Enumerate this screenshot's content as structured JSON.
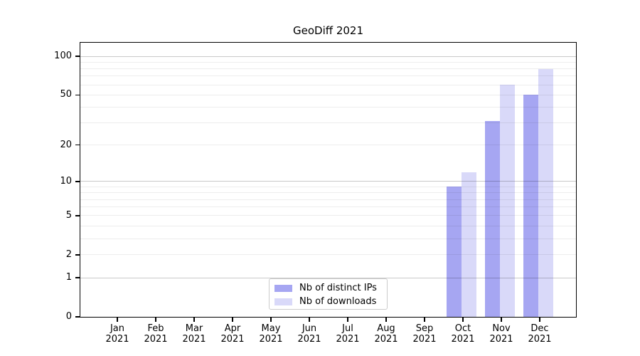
{
  "title": "GeoDiff 2021",
  "chart_data": {
    "type": "bar",
    "title": "GeoDiff 2021",
    "xlabel": "",
    "ylabel": "",
    "yscale": "symlog-log1p",
    "ylim": [
      0,
      127.4
    ],
    "grid": "horizontal",
    "legend_position": "bottom-center-inside",
    "categories": [
      {
        "month": "Jan",
        "year": "2021"
      },
      {
        "month": "Feb",
        "year": "2021"
      },
      {
        "month": "Mar",
        "year": "2021"
      },
      {
        "month": "Apr",
        "year": "2021"
      },
      {
        "month": "May",
        "year": "2021"
      },
      {
        "month": "Jun",
        "year": "2021"
      },
      {
        "month": "Jul",
        "year": "2021"
      },
      {
        "month": "Aug",
        "year": "2021"
      },
      {
        "month": "Sep",
        "year": "2021"
      },
      {
        "month": "Oct",
        "year": "2021"
      },
      {
        "month": "Nov",
        "year": "2021"
      },
      {
        "month": "Dec",
        "year": "2021"
      }
    ],
    "series": [
      {
        "name": "Nb of distinct IPs",
        "color": "#a6a6f2",
        "values": [
          0,
          0,
          0,
          0,
          0,
          0,
          0,
          0,
          0,
          9,
          31,
          50
        ]
      },
      {
        "name": "Nb of downloads",
        "color": "#d9d9f9",
        "values": [
          0,
          0,
          0,
          0,
          0,
          0,
          0,
          0,
          0,
          12,
          60,
          80
        ]
      }
    ],
    "y_major_ticks": [
      0,
      1,
      2,
      5,
      10,
      20,
      50,
      100
    ],
    "y_minor_gridlines": [
      3,
      4,
      6,
      7,
      8,
      9,
      30,
      40,
      60,
      70,
      80,
      90
    ],
    "y_power_gridlines": [
      1,
      10,
      100
    ]
  },
  "colors": {
    "background": "#ffffff",
    "axis": "#000000",
    "text": "#000000",
    "grid_major": "rgba(0,0,0,0.21)",
    "grid_minor": "rgba(0,0,0,0.07)",
    "legend_border": "#cccccc"
  }
}
